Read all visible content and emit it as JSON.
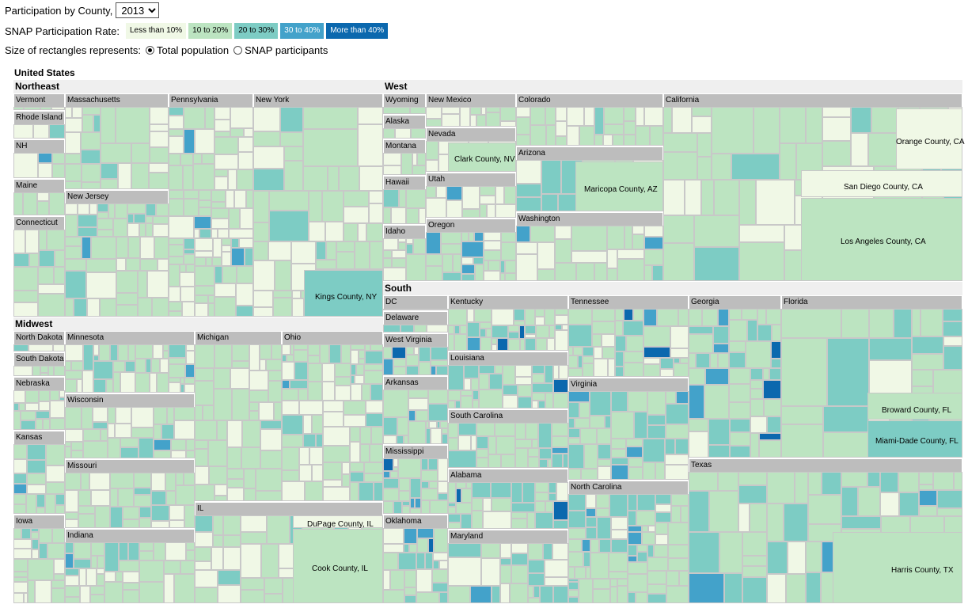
{
  "controls": {
    "participation_label": "Participation by County,",
    "year_selected": "2013",
    "legend_label": "SNAP Participation Rate:",
    "legend": [
      {
        "label": "Less than 10%",
        "color": "#f0f8e6",
        "text": "#000"
      },
      {
        "label": "10 to 20%",
        "color": "#bce4c1",
        "text": "#000"
      },
      {
        "label": "20 to 30%",
        "color": "#7dccc4",
        "text": "#000"
      },
      {
        "label": "30 to 40%",
        "color": "#43a2ca",
        "text": "#fff"
      },
      {
        "label": "More than 40%",
        "color": "#0b68ae",
        "text": "#fff"
      }
    ],
    "size_label": "Size of rectangles represents:",
    "size_options": [
      "Total population",
      "SNAP participants"
    ],
    "size_selected": "Total population"
  },
  "treemap_title": "United States",
  "regions": [
    {
      "name": "Northeast",
      "states": [
        "Vermont",
        "Rhode Island",
        "NH",
        "Maine",
        "Connecticut",
        "Massachusetts",
        "New Jersey",
        "Pennsylvania",
        "New York"
      ]
    },
    {
      "name": "West",
      "states": [
        "Wyoming",
        "Alaska",
        "Montana",
        "Hawaii",
        "Idaho",
        "New Mexico",
        "Nevada",
        "Utah",
        "Oregon",
        "Colorado",
        "Arizona",
        "Washington",
        "California"
      ]
    },
    {
      "name": "Midwest",
      "states": [
        "North Dakota",
        "South Dakota",
        "Nebraska",
        "Kansas",
        "Iowa",
        "Minnesota",
        "Wisconsin",
        "Missouri",
        "Indiana",
        "Michigan",
        "IL",
        "Ohio"
      ]
    },
    {
      "name": "South",
      "states": [
        "DC",
        "Delaware",
        "West Virginia",
        "Arkansas",
        "Mississippi",
        "Oklahoma",
        "Kentucky",
        "Louisiana",
        "South Carolina",
        "Alabama",
        "Maryland",
        "Tennessee",
        "Virginia",
        "North Carolina",
        "Georgia",
        "Florida",
        "Texas"
      ]
    }
  ],
  "county_labels": {
    "orange_ca": "Orange County, CA",
    "san_diego_ca": "San Diego County, CA",
    "los_angeles_ca": "Los Angeles County, CA",
    "clark_nv": "Clark County, NV",
    "maricopa_az": "Maricopa County, AZ",
    "kings_ny": "Kings County, NY",
    "dupage_il": "DuPage County, IL",
    "cook_il": "Cook County, IL",
    "broward_fl": "Broward County, FL",
    "miami_dade_fl": "Miami-Dade County, FL",
    "harris_tx": "Harris County, TX"
  }
}
